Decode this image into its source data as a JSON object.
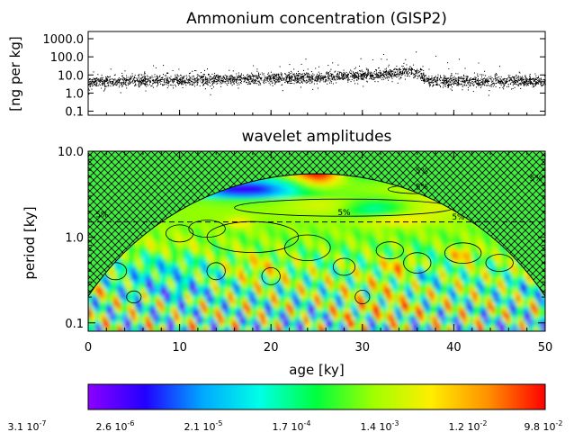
{
  "chart_data": [
    {
      "type": "scatter",
      "title": "Ammonium concentration (GISP2)",
      "ylabel": "[ng per kg]",
      "xlim": [
        0,
        50
      ],
      "ylim": [
        0.06,
        2500
      ],
      "yscale": "log",
      "yticks": [
        "1000.0",
        "100.0",
        "10.0",
        "1.0",
        "0.1"
      ],
      "ytick_values": [
        1000,
        100,
        10,
        1,
        0.1
      ],
      "series_color": "#000000",
      "baseline_profile": {
        "x": [
          0,
          5,
          10,
          15,
          20,
          25,
          30,
          33,
          35,
          36,
          37,
          40,
          45,
          50
        ],
        "y": [
          4,
          4.5,
          5,
          5.5,
          6,
          7,
          9,
          12,
          15,
          14,
          5,
          4.5,
          4.2,
          4.5
        ]
      }
    },
    {
      "type": "heatmap",
      "title": "wavelet amplitudes",
      "xlabel": "age [ky]",
      "ylabel": "period [ky]",
      "xlim": [
        0,
        50
      ],
      "ylim": [
        0.08,
        10
      ],
      "yscale": "log",
      "xticks": [
        "0",
        "10",
        "20",
        "30",
        "40",
        "50"
      ],
      "xtick_values": [
        0,
        10,
        20,
        30,
        40,
        50
      ],
      "yticks": [
        "10.0",
        "1.0",
        "0.1"
      ],
      "ytick_values": [
        10,
        1,
        0.1
      ],
      "dashed_line_period": 1.5,
      "contour_label": "5%",
      "contour_labels_at": [
        {
          "x": 36.5,
          "y": 5.5
        },
        {
          "x": 36.5,
          "y": 3.6
        },
        {
          "x": 28,
          "y": 1.8
        },
        {
          "x": 40.5,
          "y": 1.6
        },
        {
          "x": 49,
          "y": 4.5
        },
        {
          "x": 1.5,
          "y": 1.7
        }
      ],
      "hatch_regions": "cone of influence"
    },
    {
      "type": "colorbar",
      "colors": [
        "#8c00ff",
        "#2200ff",
        "#00a8ff",
        "#00ffe6",
        "#00ff3c",
        "#a0ff00",
        "#ffee00",
        "#ff9000",
        "#ff0000"
      ],
      "tick_labels": [
        "3.1 10",
        "2.6 10",
        "2.1 10",
        "1.7 10",
        "1.4 10",
        "1.2 10",
        "9.8 10"
      ],
      "tick_exponents": [
        "-7",
        "-6",
        "-5",
        "-4",
        "-3",
        "-2",
        "-2"
      ]
    }
  ]
}
